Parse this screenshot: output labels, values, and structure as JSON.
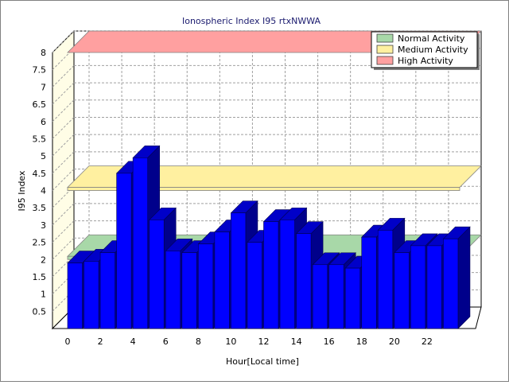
{
  "chart_data": {
    "type": "bar",
    "title": "Ionospheric Index I95 rtxNWWA",
    "xlabel": "Hour[Local time]",
    "ylabel": "I95 Index",
    "ylim": [
      0,
      8
    ],
    "y_ticks": [
      "0.5",
      "1",
      "1.5",
      "2",
      "2.5",
      "3",
      "3.5",
      "4",
      "4.5",
      "5",
      "5.5",
      "6",
      "6.5",
      "7",
      "7.5",
      "8"
    ],
    "x_ticks": [
      "0",
      "2",
      "4",
      "6",
      "8",
      "10",
      "12",
      "14",
      "16",
      "18",
      "20",
      "22"
    ],
    "grid": true,
    "legend_position": "top-right",
    "hours": [
      0,
      1,
      2,
      3,
      4,
      5,
      6,
      7,
      8,
      9,
      10,
      11,
      12,
      13,
      14,
      15,
      16,
      17,
      18,
      19,
      20,
      21,
      22,
      23
    ],
    "values": [
      1.9,
      1.95,
      2.2,
      4.5,
      4.95,
      3.15,
      2.25,
      2.2,
      2.45,
      2.8,
      3.35,
      2.5,
      3.1,
      3.15,
      2.75,
      1.85,
      1.85,
      1.75,
      2.65,
      2.85,
      2.2,
      2.4,
      2.4,
      2.6
    ],
    "bands": [
      {
        "name": "Normal Activity",
        "value": 2,
        "color": "#a8d8a8"
      },
      {
        "name": "Medium Activity",
        "value": 4,
        "color": "#fff0a0"
      },
      {
        "name": "High Activity",
        "value": 8,
        "color": "#ffa0a0"
      }
    ],
    "bar_color": "#0000ff",
    "bar_side_color": "#00008b",
    "bar_top_color": "#0000c8"
  }
}
